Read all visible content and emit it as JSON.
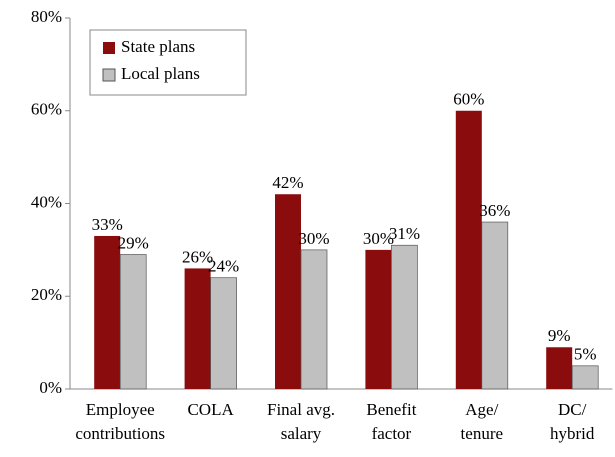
{
  "chart_data": {
    "type": "bar",
    "categories": [
      "Employee\ncontributions",
      "COLA",
      "Final avg.\nsalary",
      "Benefit\nfactor",
      "Age/\ntenure",
      "DC/\nhybrid"
    ],
    "series": [
      {
        "name": "State plans",
        "color": "#8b0c0c",
        "values": [
          33,
          26,
          42,
          30,
          60,
          9
        ],
        "value_labels": [
          "33%",
          "26%",
          "42%",
          "30%",
          "60%",
          "9%"
        ]
      },
      {
        "name": "Local plans",
        "color": "#c0c0c0",
        "values": [
          29,
          24,
          30,
          31,
          36,
          5
        ],
        "value_labels": [
          "29%",
          "24%",
          "30%",
          "31%",
          "36%",
          "5%"
        ]
      }
    ],
    "ylim": [
      0,
      80
    ],
    "yticks": [
      {
        "value": 0,
        "label": "0%"
      },
      {
        "value": 20,
        "label": "20%"
      },
      {
        "value": 40,
        "label": "40%"
      },
      {
        "value": 60,
        "label": "60%"
      },
      {
        "value": 80,
        "label": "80%"
      }
    ],
    "legend": "upper left"
  }
}
